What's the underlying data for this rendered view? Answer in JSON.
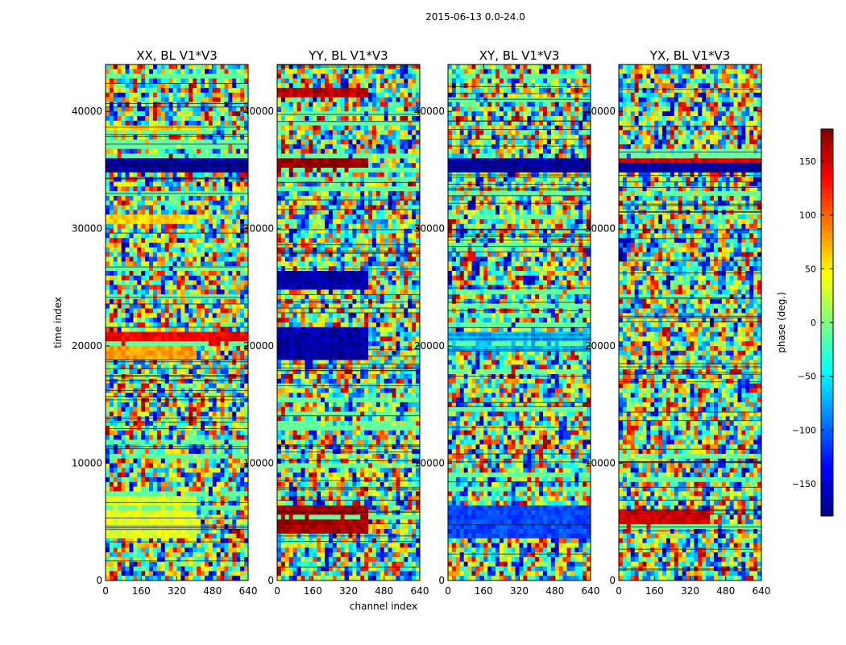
{
  "figure": {
    "title": "2015-06-13 0.0-24.0"
  },
  "chart_data": {
    "type": "heatmap",
    "title": "2015-06-13 0.0-24.0",
    "xlabel": "channel index",
    "ylabel": "time index",
    "xlim": [
      0,
      640
    ],
    "ylim": [
      0,
      44000
    ],
    "xticks": [
      0,
      160,
      320,
      480,
      640
    ],
    "yticks": [
      0,
      10000,
      20000,
      30000,
      40000
    ],
    "panels": [
      {
        "title": "XX, BL V1*V3",
        "polarization": "XX",
        "baseline": "BL V1*V3"
      },
      {
        "title": "YY, BL V1*V3",
        "polarization": "YY",
        "baseline": "BL V1*V3"
      },
      {
        "title": "XY, BL V1*V3",
        "polarization": "XY",
        "baseline": "BL V1*V3"
      },
      {
        "title": "YX, BL V1*V3",
        "polarization": "YX",
        "baseline": "BL V1*V3"
      }
    ],
    "colorbar": {
      "label": "phase (deg.)",
      "range": [
        -180,
        180
      ],
      "ticks": [
        -150,
        -100,
        -50,
        0,
        50,
        100,
        150
      ],
      "colormap": "jet"
    }
  }
}
